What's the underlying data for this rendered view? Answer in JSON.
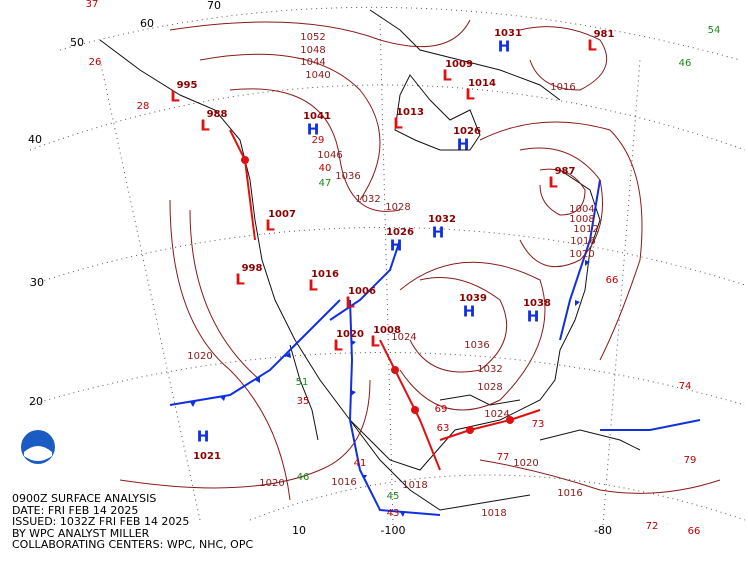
{
  "map_info": {
    "lines": [
      "0900Z SURFACE ANALYSIS",
      "DATE: FRI FEB 14 2025",
      "ISSUED: 1032Z FRI FEB 14 2025",
      "BY WPC ANALYST MILLER",
      "COLLABORATING CENTERS: WPC, NHC, OPC"
    ]
  },
  "latitude_labels": [
    70,
    60,
    50,
    40,
    30,
    20,
    10
  ],
  "longitude_labels": [
    -100,
    -80
  ],
  "high_centers": [
    {
      "symbol": "H",
      "pressure": 1021
    },
    {
      "symbol": "H",
      "pressure": 1041
    },
    {
      "symbol": "H",
      "pressure": 1026
    },
    {
      "symbol": "H",
      "pressure": 1032
    },
    {
      "symbol": "H",
      "pressure": 1039
    },
    {
      "symbol": "H",
      "pressure": 1026
    },
    {
      "symbol": "H",
      "pressure": 1038
    },
    {
      "symbol": "H",
      "pressure": 1031
    }
  ],
  "low_centers": [
    {
      "symbol": "L",
      "pressure": 995
    },
    {
      "symbol": "L",
      "pressure": 988
    },
    {
      "symbol": "L",
      "pressure": 1009
    },
    {
      "symbol": "L",
      "pressure": 1014
    },
    {
      "symbol": "L",
      "pressure": 1013
    },
    {
      "symbol": "L",
      "pressure": 987
    },
    {
      "symbol": "L",
      "pressure": 998
    },
    {
      "symbol": "L",
      "pressure": 1007
    },
    {
      "symbol": "L",
      "pressure": 1016
    },
    {
      "symbol": "L",
      "pressure": 1006
    },
    {
      "symbol": "L",
      "pressure": 1008
    },
    {
      "symbol": "L",
      "pressure": 1020
    },
    {
      "symbol": "L",
      "pressure": 981
    }
  ],
  "isobar_labels": [
    1052,
    1048,
    1044,
    1040,
    1046,
    1036,
    1032,
    1028,
    1020,
    1020,
    1016,
    1016,
    1020,
    1024,
    1028,
    1032,
    1036,
    1024,
    1020,
    1016,
    1012,
    1008,
    1004,
    1016,
    1018,
    1018
  ],
  "station_values": [
    37,
    26,
    28,
    29,
    47,
    54,
    46,
    66,
    74,
    73,
    77,
    79,
    72,
    66,
    51,
    46,
    41,
    45,
    43,
    63,
    69,
    35,
    40
  ]
}
